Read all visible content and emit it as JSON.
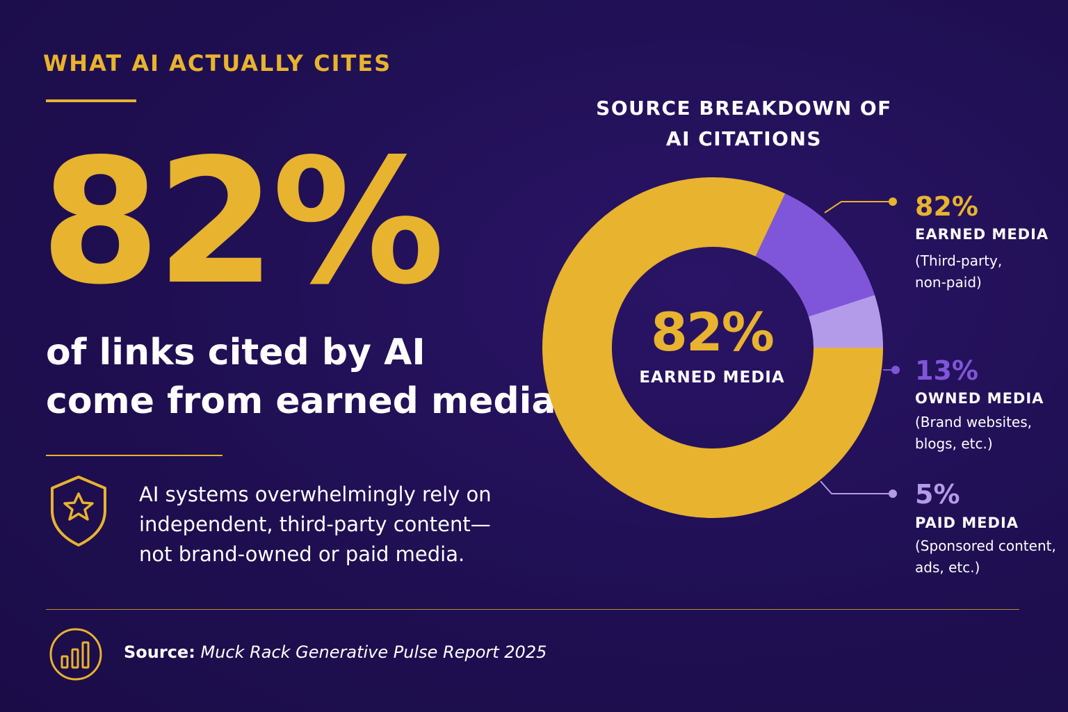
{
  "left": {
    "eyebrow": "WHAT AI ACTUALLY CITES",
    "big_stat": "82%",
    "headline_line1": "of links cited by AI",
    "headline_line2": "come from earned media.",
    "note_line1": "AI systems overwhelmingly rely on",
    "note_line2": "independent, third-party content—",
    "note_line3": "not brand-owned or paid media."
  },
  "footer": {
    "source_label": "Source:",
    "source_text": "Muck Rack Generative Pulse Report 2025"
  },
  "icons": [
    "shield-star-icon",
    "bar-chart-icon"
  ],
  "colors": {
    "background": "#1f0f52",
    "accent": "#e8b32e",
    "owned": "#7f56d9",
    "paid": "#b39bea"
  },
  "chart_data": {
    "type": "pie",
    "title_line1": "SOURCE BREAKDOWN OF",
    "title_line2": "AI CITATIONS",
    "center": {
      "value": "82%",
      "label": "EARNED MEDIA"
    },
    "series": [
      {
        "name": "EARNED MEDIA",
        "value": 82,
        "value_label": "82%",
        "desc_line1": "(Third-party,",
        "desc_line2": "non-paid)",
        "color": "#e8b32e"
      },
      {
        "name": "OWNED MEDIA",
        "value": 13,
        "value_label": "13%",
        "desc_line1": "(Brand websites,",
        "desc_line2": "blogs, etc.)",
        "color": "#7f56d9"
      },
      {
        "name": "PAID MEDIA",
        "value": 5,
        "value_label": "5%",
        "desc_line1": "(Sponsored content,",
        "desc_line2": "ads, etc.)",
        "color": "#b39bea"
      }
    ]
  }
}
